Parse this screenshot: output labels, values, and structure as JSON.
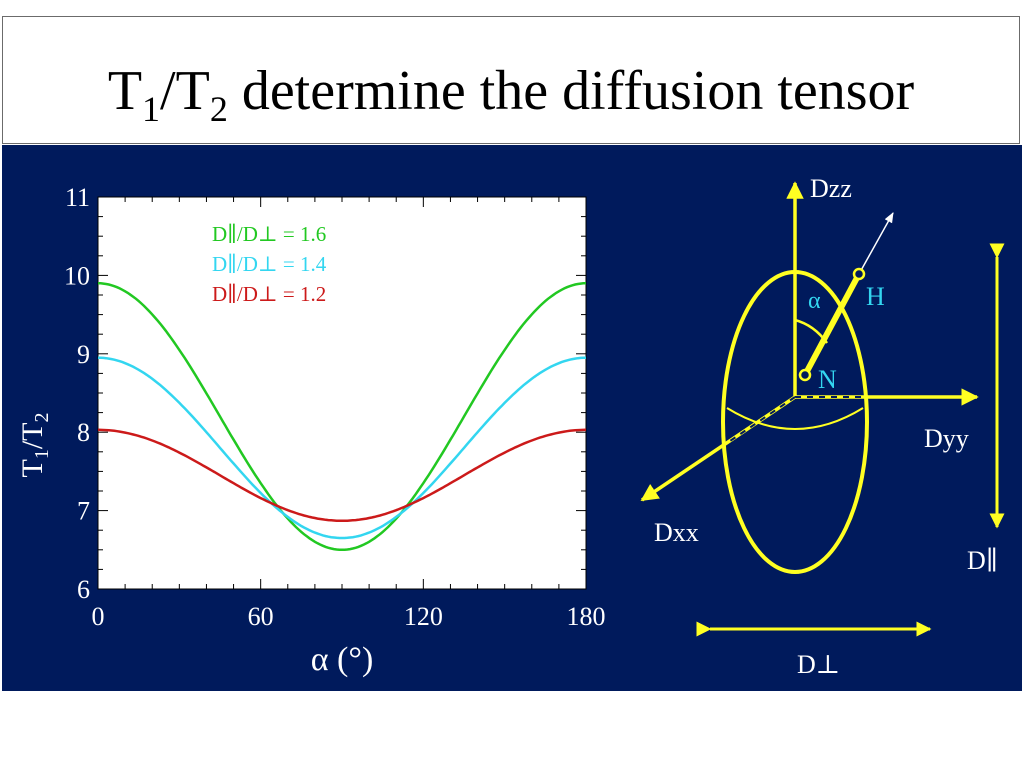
{
  "title": {
    "t1": "T",
    "sub1": "1",
    "slash": "/T",
    "sub2": "2",
    "rest": " determine the diffusion tensor"
  },
  "colors": {
    "panel_bg": "#001a5c",
    "plot_bg": "#ffffff",
    "series_green": "#22c822",
    "series_cyan": "#33d6f0",
    "series_red": "#cc1a1a",
    "diagram": "#ffff22",
    "diagram_text": "#ffffff",
    "label_cyan": "#33d6f0"
  },
  "chart_data": {
    "type": "line",
    "xlabel": "α (°)",
    "ylabel_main": "T",
    "ylabel_sub1": "1",
    "ylabel_mid": "/T",
    "ylabel_sub2": "2",
    "xlim": [
      0,
      180
    ],
    "ylim": [
      6,
      11
    ],
    "xticks": [
      0,
      60,
      120,
      180
    ],
    "yticks": [
      6,
      7,
      8,
      9,
      10,
      11
    ],
    "grid": false,
    "legend": "top-left",
    "series": [
      {
        "name": "D∥/D⊥ = 1.6",
        "color": "#22c822",
        "mean": 8.2,
        "amplitude": 1.7
      },
      {
        "name": "D∥/D⊥ = 1.4",
        "color": "#33d6f0",
        "mean": 7.8,
        "amplitude": 1.15
      },
      {
        "name": "D∥/D⊥ = 1.2",
        "color": "#cc1a1a",
        "mean": 7.45,
        "amplitude": 0.58
      }
    ]
  },
  "diagram": {
    "dzz": "Dzz",
    "dyy": "Dyy",
    "dxx": "Dxx",
    "alpha": "α",
    "h": "H",
    "n": "N",
    "dpar": "D∥",
    "dperp": "D⊥"
  }
}
